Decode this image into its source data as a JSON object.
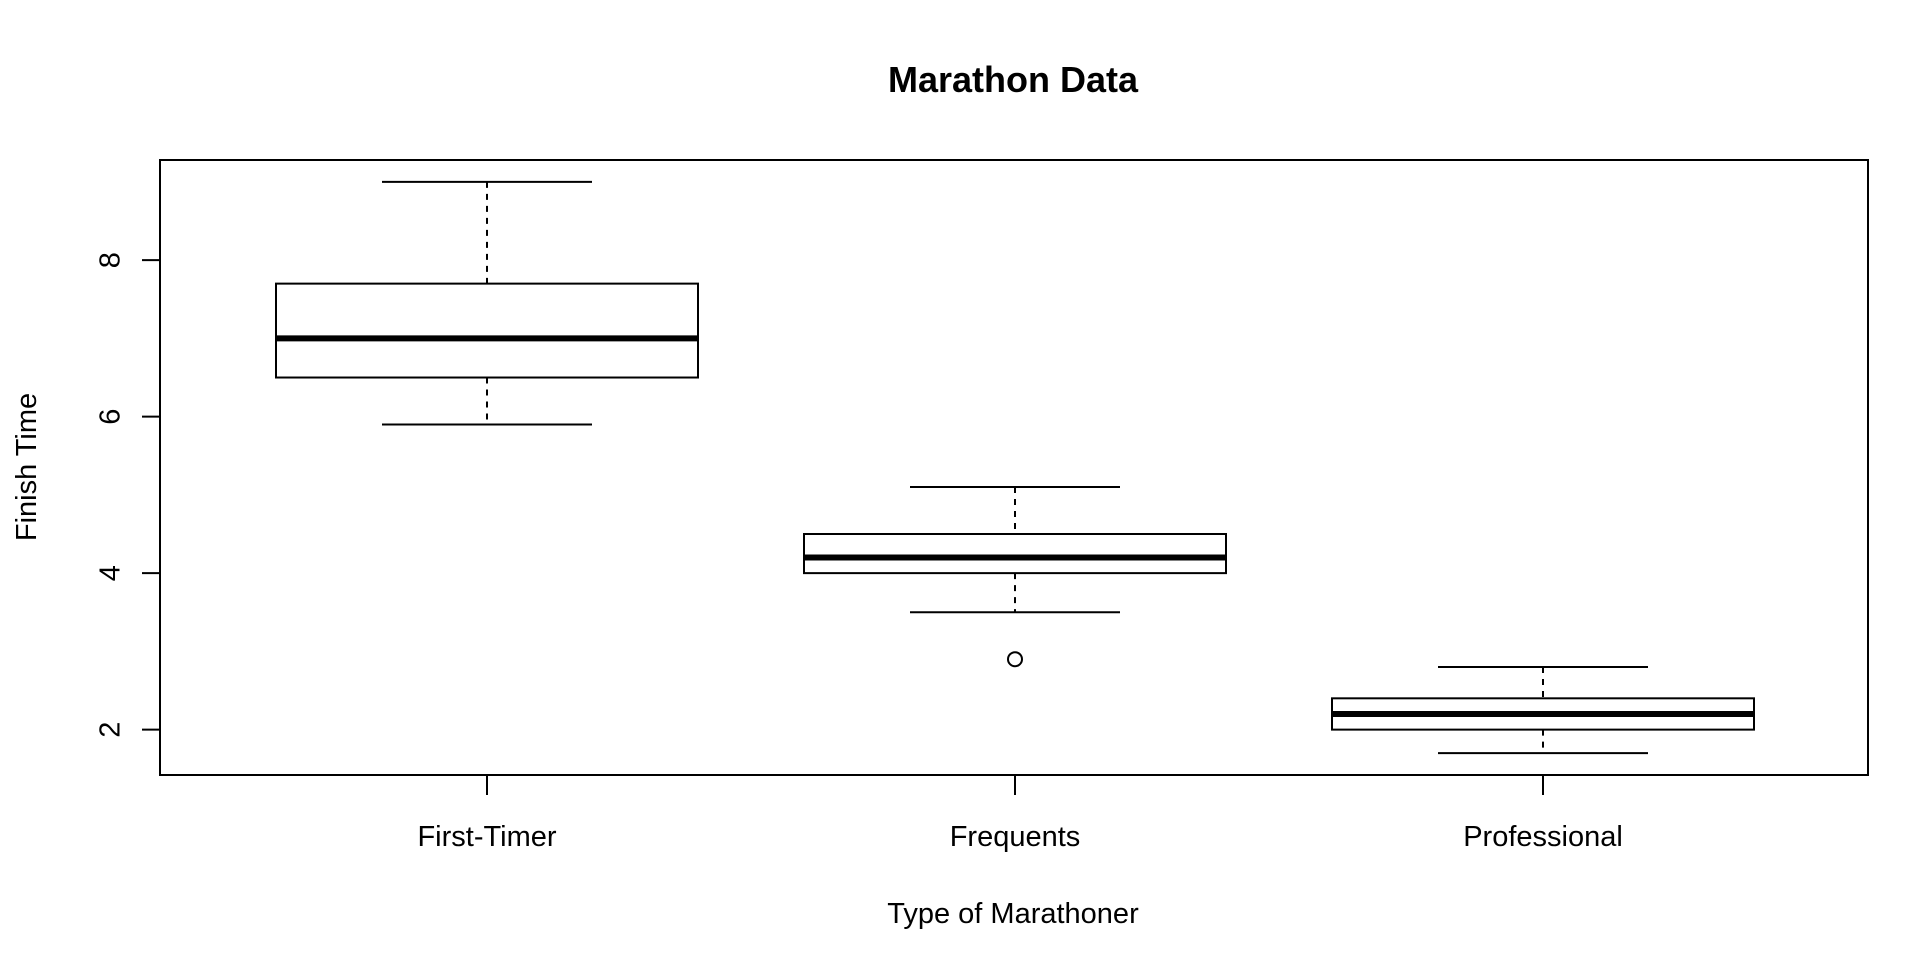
{
  "chart_data": {
    "type": "box",
    "title": "Marathon Data",
    "xlabel": "Type of Marathoner",
    "ylabel": "Finish Time",
    "categories": [
      "First-Timer",
      "Frequents",
      "Professional"
    ],
    "boxes": [
      {
        "category": "First-Timer",
        "min": 5.9,
        "q1": 6.5,
        "median": 7.0,
        "q3": 7.7,
        "max": 9.0,
        "outliers": []
      },
      {
        "category": "Frequents",
        "min": 3.5,
        "q1": 4.0,
        "median": 4.2,
        "q3": 4.5,
        "max": 5.1,
        "outliers": [
          2.9
        ]
      },
      {
        "category": "Professional",
        "min": 1.7,
        "q1": 2.0,
        "median": 2.2,
        "q3": 2.4,
        "max": 2.8,
        "outliers": []
      }
    ],
    "yticks": [
      2,
      4,
      6,
      8
    ],
    "ylim": [
      1.42,
      9.28
    ],
    "grid": false,
    "legend": "none"
  }
}
